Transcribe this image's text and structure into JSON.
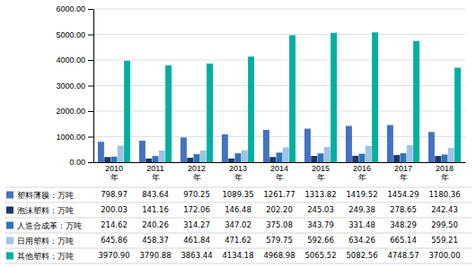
{
  "chart_data": {
    "type": "bar",
    "categories": [
      "2010\n年",
      "2011\n年",
      "2012\n年",
      "2013\n年",
      "2014\n年",
      "2015\n年",
      "2016\n年",
      "2017\n年",
      "2018\n年"
    ],
    "series": [
      {
        "name": "塑料薄膜：万吨",
        "color": "#4472C4",
        "values": [
          798.97,
          843.64,
          970.25,
          1089.35,
          1261.77,
          1313.82,
          1419.52,
          1454.29,
          1180.36
        ],
        "value_labels": [
          "798.97",
          "843.64",
          "970.25",
          "1089.35",
          "1261.77",
          "1313.82",
          "1419.52",
          "1454.29",
          "1180.36"
        ]
      },
      {
        "name": "泡沫塑料：万吨",
        "color": "#1F3864",
        "values": [
          200.03,
          141.16,
          172.06,
          146.48,
          202.2,
          245.03,
          249.38,
          278.65,
          242.43
        ],
        "value_labels": [
          "200.03",
          "141.16",
          "172.06",
          "146.48",
          "202.20",
          "245.03",
          "249.38",
          "278.65",
          "242.43"
        ]
      },
      {
        "name": "人造合成革：万吨",
        "color": "#2E75B6",
        "values": [
          214.62,
          240.26,
          314.27,
          347.02,
          375.08,
          343.79,
          331.48,
          348.29,
          299.5
        ],
        "value_labels": [
          "214.62",
          "240.26",
          "314.27",
          "347.02",
          "375.08",
          "343.79",
          "331.48",
          "348.29",
          "299.50"
        ]
      },
      {
        "name": "日用塑料：万吨",
        "color": "#9DC3E6",
        "values": [
          645.86,
          458.37,
          461.84,
          471.62,
          579.75,
          592.66,
          634.26,
          665.14,
          559.21
        ],
        "value_labels": [
          "645.86",
          "458.37",
          "461.84",
          "471.62",
          "579.75",
          "592.66",
          "634.26",
          "665.14",
          "559.21"
        ]
      },
      {
        "name": "其他塑料：万吨",
        "color": "#00B0A0",
        "values": [
          3970.9,
          3790.88,
          3863.44,
          4134.18,
          4968.98,
          5065.52,
          5082.56,
          4748.57,
          3700.0
        ],
        "value_labels": [
          "3970.90",
          "3790.88",
          "3863.44",
          "4134.18",
          "4968.98",
          "5065.52",
          "5082.56",
          "4748.57",
          "3700.00"
        ]
      }
    ],
    "ylim": [
      0,
      6000
    ],
    "yticks": [
      {
        "value": 0,
        "label": "0.00"
      },
      {
        "value": 1000,
        "label": "1000.00"
      },
      {
        "value": 2000,
        "label": "2000.00"
      },
      {
        "value": 3000,
        "label": "3000.00"
      },
      {
        "value": 4000,
        "label": "4000.00"
      },
      {
        "value": 5000,
        "label": "5000.00"
      },
      {
        "value": 6000,
        "label": "6000.00"
      }
    ],
    "grid": true,
    "legend": "bottom"
  }
}
